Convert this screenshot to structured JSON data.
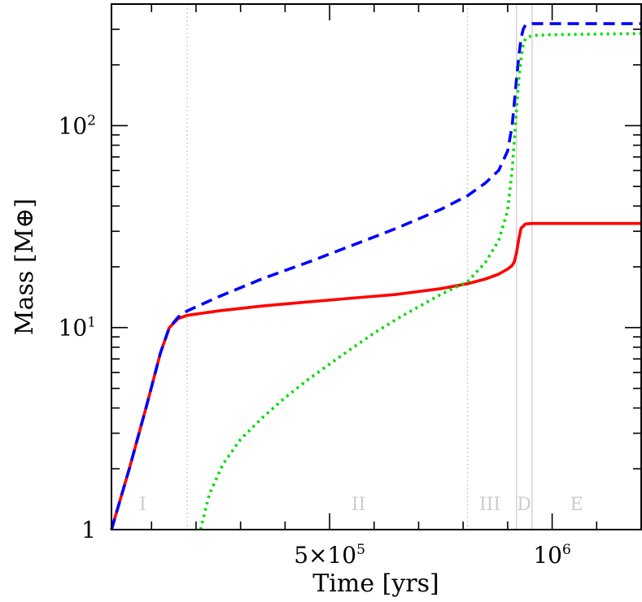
{
  "chart_data": {
    "type": "line",
    "title": "",
    "xlabel": "Time [yrs]",
    "ylabel": "Mass [M⊕]",
    "xlim": [
      10000,
      1200000
    ],
    "ylim": [
      1,
      400
    ],
    "yscale": "log",
    "x_ticks": [
      {
        "value": 500000,
        "label": "5×10",
        "sup": "5"
      },
      {
        "value": 1000000,
        "label": "10",
        "sup": "6"
      }
    ],
    "y_ticks": [
      {
        "value": 1,
        "label": "1",
        "sup": ""
      },
      {
        "value": 10,
        "label": "10",
        "sup": "1"
      },
      {
        "value": 100,
        "label": "10",
        "sup": "2"
      }
    ],
    "phase_boundaries": [
      {
        "x": 180000,
        "style": "dotted"
      },
      {
        "x": 810000,
        "style": "dotted"
      },
      {
        "x": 920000,
        "style": "solid"
      },
      {
        "x": 955000,
        "style": "solid"
      }
    ],
    "phase_labels": [
      {
        "label": "I",
        "x": 80000
      },
      {
        "label": "II",
        "x": 565000
      },
      {
        "label": "III",
        "x": 860000
      },
      {
        "label": "D",
        "x": 937000
      },
      {
        "label": "E",
        "x": 1055000
      }
    ],
    "series": [
      {
        "key": "core",
        "color": "#ff0000",
        "dash": "solid",
        "x": [
          10000,
          50000,
          90000,
          120000,
          140000,
          160000,
          180000,
          250000,
          350000,
          450000,
          550000,
          650000,
          750000,
          810000,
          850000,
          880000,
          900000,
          910000,
          915000,
          920000,
          925000,
          930000,
          940000,
          955000,
          1000000,
          1100000,
          1200000
        ],
        "y": [
          1.0,
          2.0,
          4.2,
          7.5,
          10.0,
          11.1,
          11.5,
          12.1,
          12.8,
          13.4,
          14.0,
          14.6,
          15.6,
          16.5,
          17.4,
          18.4,
          19.5,
          20.3,
          21.2,
          23.5,
          27.5,
          31.0,
          32.6,
          32.8,
          32.8,
          32.8,
          32.8
        ]
      },
      {
        "key": "total",
        "color": "#0000ff",
        "dash": "dashed",
        "x": [
          10000,
          50000,
          90000,
          120000,
          140000,
          160000,
          180000,
          250000,
          350000,
          450000,
          550000,
          650000,
          750000,
          810000,
          850000,
          880000,
          900000,
          910000,
          915000,
          920000,
          925000,
          930000,
          935000,
          940000,
          955000,
          1000000,
          1100000,
          1200000
        ],
        "y": [
          1.0,
          2.0,
          4.2,
          7.5,
          10.0,
          11.3,
          12.1,
          14.2,
          17.5,
          21.0,
          25.5,
          31.0,
          38.5,
          45.0,
          52.0,
          60.0,
          75.0,
          100.0,
          130.0,
          170.0,
          220.0,
          270.0,
          300.0,
          315.0,
          320.0,
          320.0,
          320.0,
          320.0
        ]
      },
      {
        "key": "envelope",
        "color": "#00dd00",
        "dash": "dotted",
        "x": [
          210000,
          230000,
          260000,
          300000,
          350000,
          400000,
          450000,
          500000,
          550000,
          600000,
          650000,
          700000,
          750000,
          810000,
          850000,
          880000,
          900000,
          910000,
          915000,
          920000,
          925000,
          930000,
          935000,
          940000,
          955000,
          1000000,
          1100000,
          1200000
        ],
        "y": [
          1.0,
          1.5,
          2.1,
          2.8,
          3.6,
          4.5,
          5.5,
          6.6,
          7.9,
          9.4,
          11.0,
          12.7,
          14.6,
          16.9,
          21.0,
          27.0,
          38.0,
          60.0,
          85.0,
          120.0,
          170.0,
          215.0,
          250.0,
          270.0,
          280.0,
          282.0,
          284.0,
          286.0
        ]
      }
    ]
  }
}
